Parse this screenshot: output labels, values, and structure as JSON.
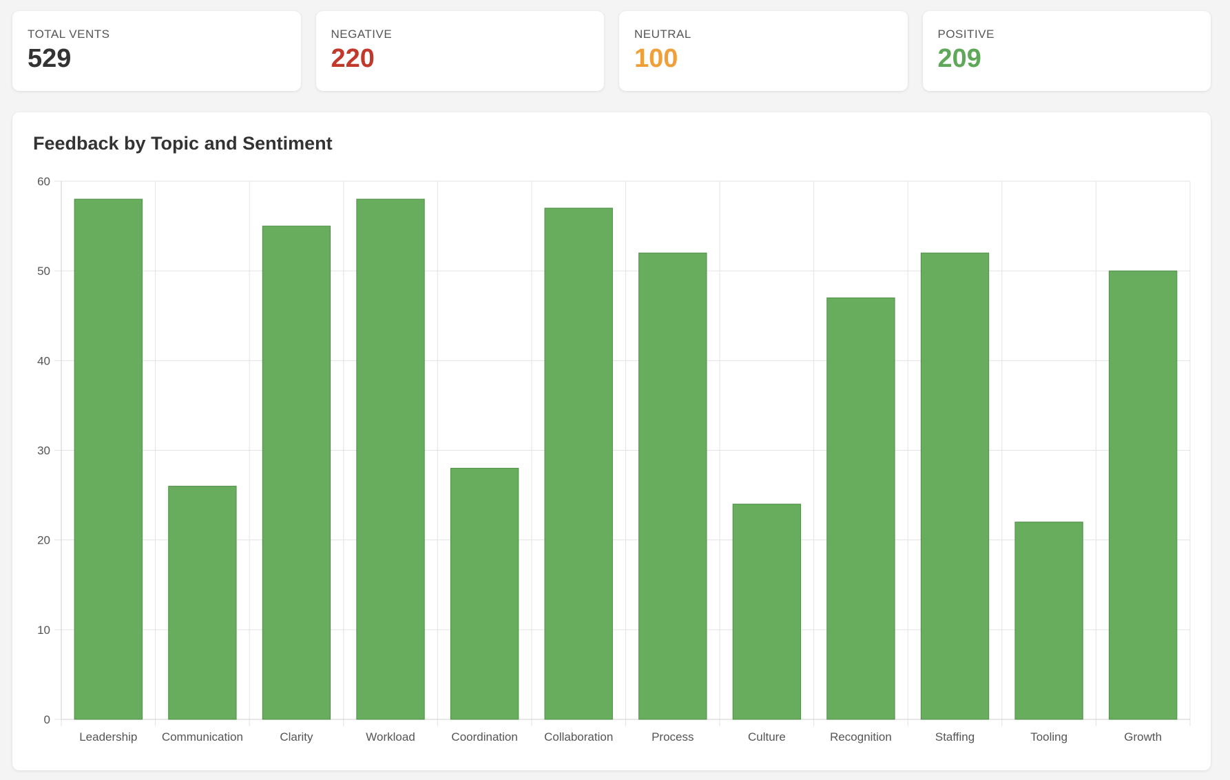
{
  "stats": [
    {
      "label": "TOTAL VENTS",
      "value": "529",
      "color": "#333333"
    },
    {
      "label": "NEGATIVE",
      "value": "220",
      "color": "#c0392b"
    },
    {
      "label": "NEUTRAL",
      "value": "100",
      "color": "#f0a03a"
    },
    {
      "label": "POSITIVE",
      "value": "209",
      "color": "#5fa85a"
    }
  ],
  "chart": {
    "title": "Feedback by Topic and Sentiment"
  },
  "chart_data": {
    "type": "bar",
    "title": "Feedback by Topic and Sentiment",
    "categories": [
      "Leadership",
      "Communication",
      "Clarity",
      "Workload",
      "Coordination",
      "Collaboration",
      "Process",
      "Culture",
      "Recognition",
      "Staffing",
      "Tooling",
      "Growth"
    ],
    "values": [
      58,
      26,
      55,
      58,
      28,
      57,
      52,
      24,
      47,
      52,
      22,
      50
    ],
    "ylim": [
      0,
      60
    ],
    "yticks": [
      "0",
      "10",
      "20",
      "30",
      "40",
      "50",
      "60"
    ],
    "grid": true,
    "bar_color": "#68ad5e",
    "bar_border": "#4e8f47"
  }
}
